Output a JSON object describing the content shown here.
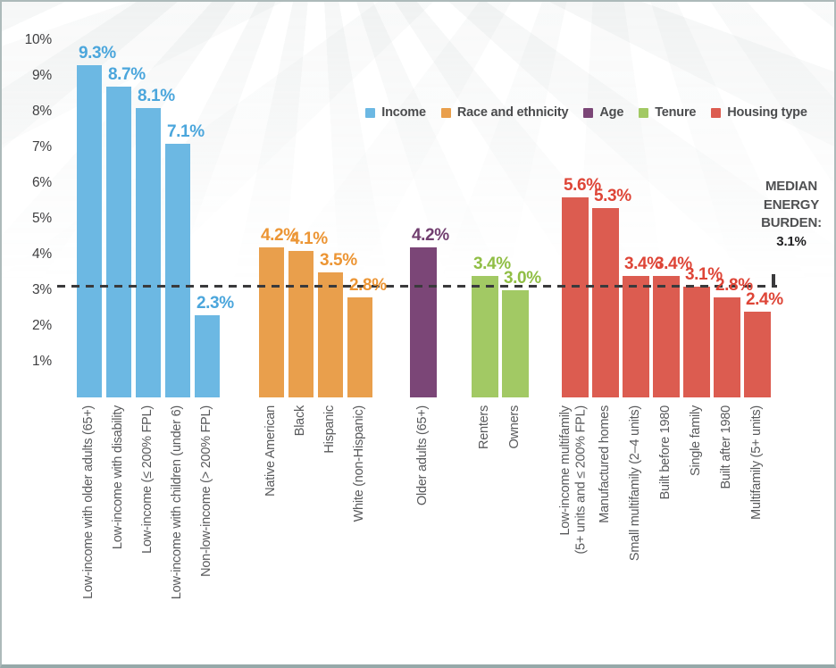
{
  "chart_data": {
    "type": "bar",
    "title": "",
    "xlabel": "",
    "ylabel": "",
    "ylim": [
      0,
      10
    ],
    "grid": false,
    "legend_position": "top-right",
    "y_axis": {
      "ticks": [
        {
          "value": 1,
          "label": "1%"
        },
        {
          "value": 2,
          "label": "2%"
        },
        {
          "value": 3,
          "label": "3%"
        },
        {
          "value": 4,
          "label": "4%"
        },
        {
          "value": 5,
          "label": "5%"
        },
        {
          "value": 6,
          "label": "6%"
        },
        {
          "value": 7,
          "label": "7%"
        },
        {
          "value": 8,
          "label": "8%"
        },
        {
          "value": 9,
          "label": "9%"
        },
        {
          "value": 10,
          "label": "10%"
        }
      ]
    },
    "legend": [
      {
        "label": "Income",
        "color": "#6CB8E3"
      },
      {
        "label": "Race and ethnicity",
        "color": "#E99F4C"
      },
      {
        "label": "Age",
        "color": "#7B4677"
      },
      {
        "label": "Tenure",
        "color": "#A2C964"
      },
      {
        "label": "Housing type",
        "color": "#DC5C50"
      }
    ],
    "median_line": {
      "value": 3.1,
      "style": "dashed",
      "color": "#3a3a3c",
      "label_lines": [
        "MEDIAN",
        "ENERGY",
        "BURDEN:"
      ],
      "value_label": "3.1%"
    },
    "groups": [
      {
        "name": "Income",
        "color": "#6CB8E3",
        "value_label_color": "#4BA6DC",
        "bars": [
          {
            "category_lines": [
              "Low-income with older adults (65+)"
            ],
            "value": 9.3,
            "value_label": "9.3%"
          },
          {
            "category_lines": [
              "Low-income with disability"
            ],
            "value": 8.7,
            "value_label": "8.7%"
          },
          {
            "category_lines": [
              "Low-income (≤ 200% FPL)"
            ],
            "value": 8.1,
            "value_label": "8.1%"
          },
          {
            "category_lines": [
              "Low-income with children (under 6)"
            ],
            "value": 7.1,
            "value_label": "7.1%"
          },
          {
            "category_lines": [
              "Non-low-income (> 200% FPL)"
            ],
            "value": 2.3,
            "value_label": "2.3%"
          }
        ]
      },
      {
        "name": "Race and ethnicity",
        "color": "#E99F4C",
        "value_label_color": "#EC9534",
        "bars": [
          {
            "category_lines": [
              "Native American"
            ],
            "value": 4.2,
            "value_label": "4.2%"
          },
          {
            "category_lines": [
              "Black"
            ],
            "value": 4.1,
            "value_label": "4.1%"
          },
          {
            "category_lines": [
              "Hispanic"
            ],
            "value": 3.5,
            "value_label": "3.5%"
          },
          {
            "category_lines": [
              "White (non-Hispanic)"
            ],
            "value": 2.8,
            "value_label": "2.8%"
          }
        ]
      },
      {
        "name": "Age",
        "color": "#7B4677",
        "value_label_color": "#713E6F",
        "bars": [
          {
            "category_lines": [
              "Older adults (65+)"
            ],
            "value": 4.2,
            "value_label": "4.2%"
          }
        ]
      },
      {
        "name": "Tenure",
        "color": "#A2C964",
        "value_label_color": "#90BE45",
        "bars": [
          {
            "category_lines": [
              "Renters"
            ],
            "value": 3.4,
            "value_label": "3.4%"
          },
          {
            "category_lines": [
              "Owners"
            ],
            "value": 3.0,
            "value_label": "3.0%"
          }
        ]
      },
      {
        "name": "Housing type",
        "color": "#DC5C50",
        "value_label_color": "#DE4537",
        "bars": [
          {
            "category_lines": [
              "Low-income multifamily",
              "(5+ units and ≤ 200% FPL)"
            ],
            "value": 5.6,
            "value_label": "5.6%"
          },
          {
            "category_lines": [
              "Manufactured homes"
            ],
            "value": 5.3,
            "value_label": "5.3%"
          },
          {
            "category_lines": [
              "Small multifamily (2–4 units)"
            ],
            "value": 3.4,
            "value_label": "3.4%"
          },
          {
            "category_lines": [
              "Built before 1980"
            ],
            "value": 3.4,
            "value_label": "3.4%"
          },
          {
            "category_lines": [
              "Single family"
            ],
            "value": 3.1,
            "value_label": "3.1%"
          },
          {
            "category_lines": [
              "Built after 1980"
            ],
            "value": 2.8,
            "value_label": "2.8%"
          },
          {
            "category_lines": [
              "Multifamily (5+ units)"
            ],
            "value": 2.4,
            "value_label": "2.4%"
          }
        ]
      }
    ]
  }
}
